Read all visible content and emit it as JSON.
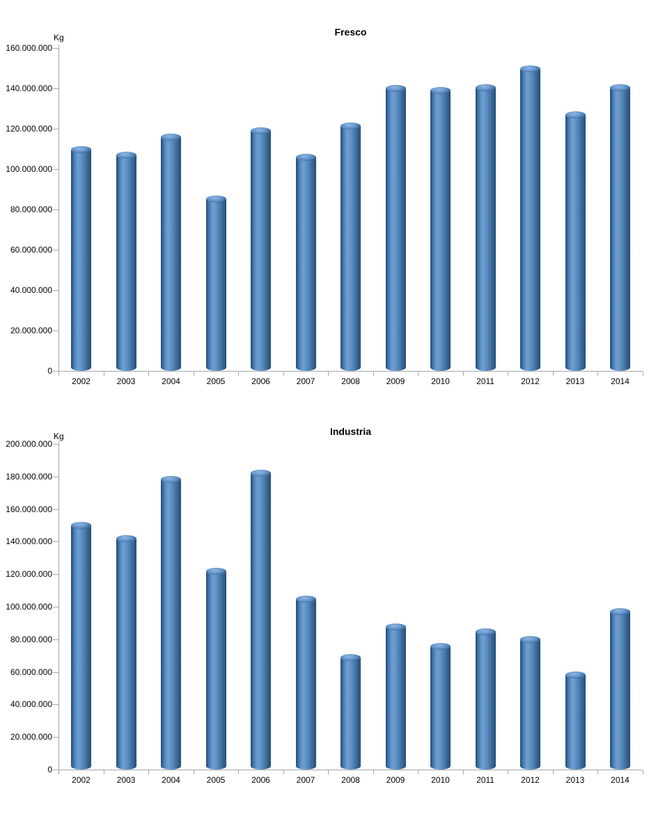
{
  "chart_data": [
    {
      "type": "bar",
      "bar_style": "cylinder-3d",
      "title": "Fresco",
      "ylabel": "Kg",
      "xlabel": "",
      "categories": [
        "2002",
        "2003",
        "2004",
        "2005",
        "2006",
        "2007",
        "2008",
        "2009",
        "2010",
        "2011",
        "2012",
        "2013",
        "2014"
      ],
      "values": [
        109500000,
        107000000,
        116000000,
        85000000,
        119000000,
        106000000,
        121500000,
        140000000,
        139000000,
        140500000,
        149500000,
        127000000,
        140500000
      ],
      "ylim": [
        0,
        160000000
      ],
      "ytick_interval": 20000000,
      "ytick_labels": [
        "0",
        "20.000.000",
        "40.000.000",
        "60.000.000",
        "80.000.000",
        "100.000.000",
        "120.000.000",
        "140.000.000",
        "160.000.000"
      ],
      "grid": false,
      "legend": false,
      "bar_color": "#4f81bd",
      "axis_color": "#a6a6a6",
      "text_color": "#000000"
    },
    {
      "type": "bar",
      "bar_style": "cylinder-3d",
      "title": "Industria",
      "ylabel": "Kg",
      "xlabel": "",
      "categories": [
        "2002",
        "2003",
        "2004",
        "2005",
        "2006",
        "2007",
        "2008",
        "2009",
        "2010",
        "2011",
        "2012",
        "2013",
        "2014"
      ],
      "values": [
        150000000,
        142000000,
        178000000,
        122000000,
        182000000,
        104500000,
        69000000,
        87500000,
        75500000,
        84500000,
        80000000,
        58000000,
        97000000
      ],
      "ylim": [
        0,
        200000000
      ],
      "ytick_interval": 20000000,
      "ytick_labels": [
        "0",
        "20.000.000",
        "40.000.000",
        "60.000.000",
        "80.000.000",
        "100.000.000",
        "120.000.000",
        "140.000.000",
        "160.000.000",
        "180.000.000",
        "200.000.000"
      ],
      "grid": false,
      "legend": false,
      "bar_color": "#4f81bd",
      "axis_color": "#a6a6a6",
      "text_color": "#000000"
    }
  ]
}
